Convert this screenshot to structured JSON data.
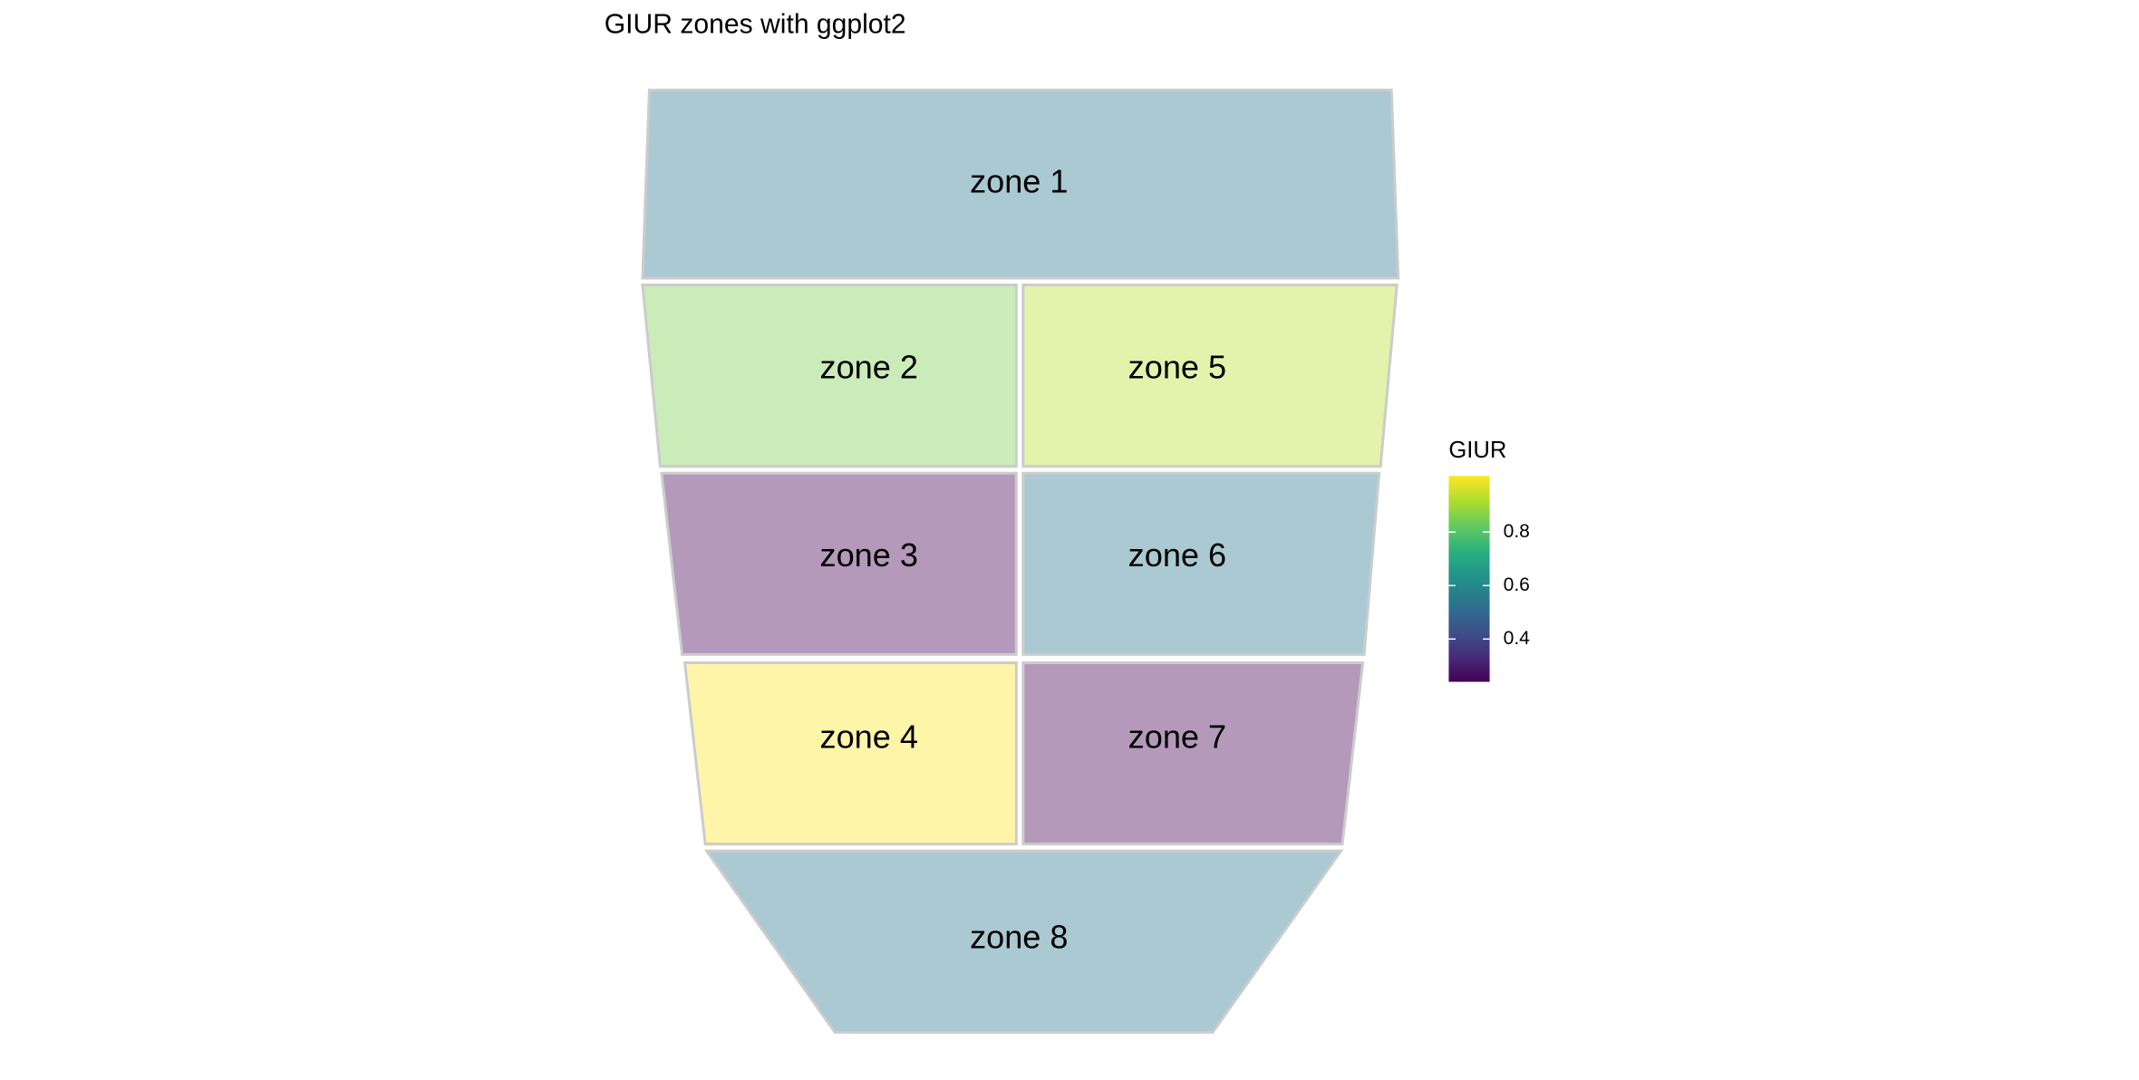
{
  "chart_data": {
    "type": "choropleth",
    "title": "GIUR zones with ggplot2",
    "legend_title": "GIUR",
    "categories": [
      "zone 1",
      "zone 2",
      "zone 3",
      "zone 4",
      "zone 5",
      "zone 6",
      "zone 7",
      "zone 8"
    ],
    "values": [
      0.55,
      0.85,
      0.24,
      1.01,
      0.93,
      0.55,
      0.24,
      0.55
    ],
    "colormap": "viridis",
    "fill_opacity": 0.4,
    "color_lim": [
      0.24,
      1.01
    ],
    "color_ticks": [
      0.4,
      0.6,
      0.8
    ]
  }
}
